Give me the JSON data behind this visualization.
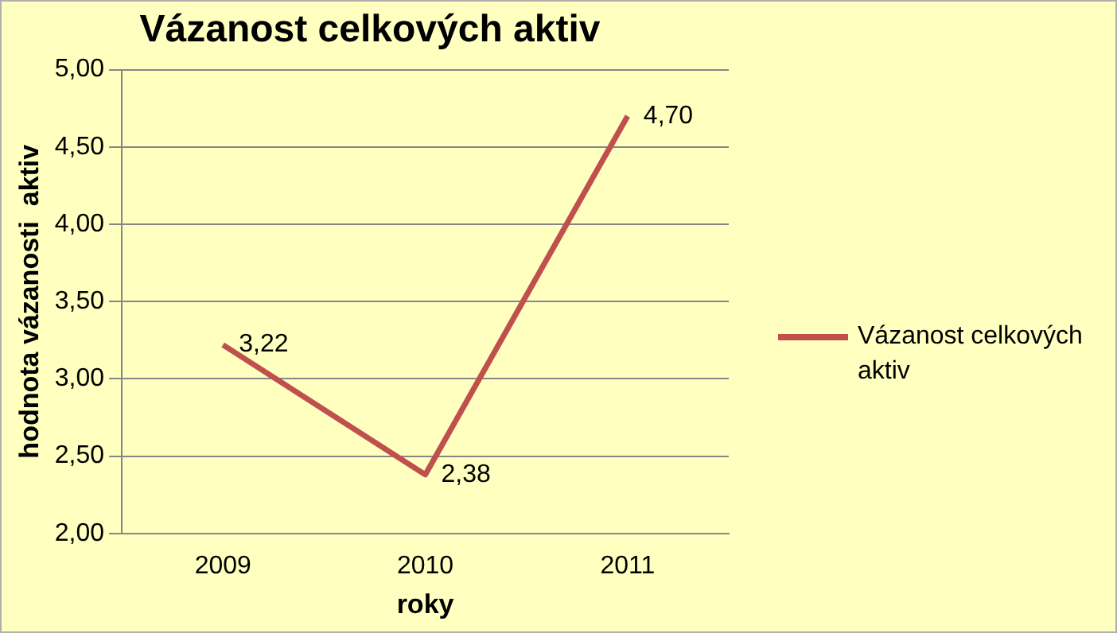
{
  "chart_data": {
    "type": "line",
    "title": "Vázanost celkových aktiv",
    "xlabel": "roky",
    "ylabel": "hodnota vázanosti  aktiv",
    "categories": [
      "2009",
      "2010",
      "2011"
    ],
    "series": [
      {
        "name": "Vázanost celkových aktiv",
        "color": "#c0504d",
        "values": [
          3.22,
          2.38,
          4.7
        ],
        "value_labels": [
          "3,22",
          "2,38",
          "4,70"
        ]
      }
    ],
    "ylim": [
      2,
      5
    ],
    "yticks": [
      {
        "value": 2,
        "label": "2,00"
      },
      {
        "value": 2.5,
        "label": "2,50"
      },
      {
        "value": 3,
        "label": "3,00"
      },
      {
        "value": 3.5,
        "label": "3,50"
      },
      {
        "value": 4,
        "label": "4,00"
      },
      {
        "value": 4.5,
        "label": "4,50"
      },
      {
        "value": 5,
        "label": "5,00"
      }
    ],
    "grid": "y",
    "legend": "right",
    "marker": "none",
    "line_style": "solid"
  }
}
